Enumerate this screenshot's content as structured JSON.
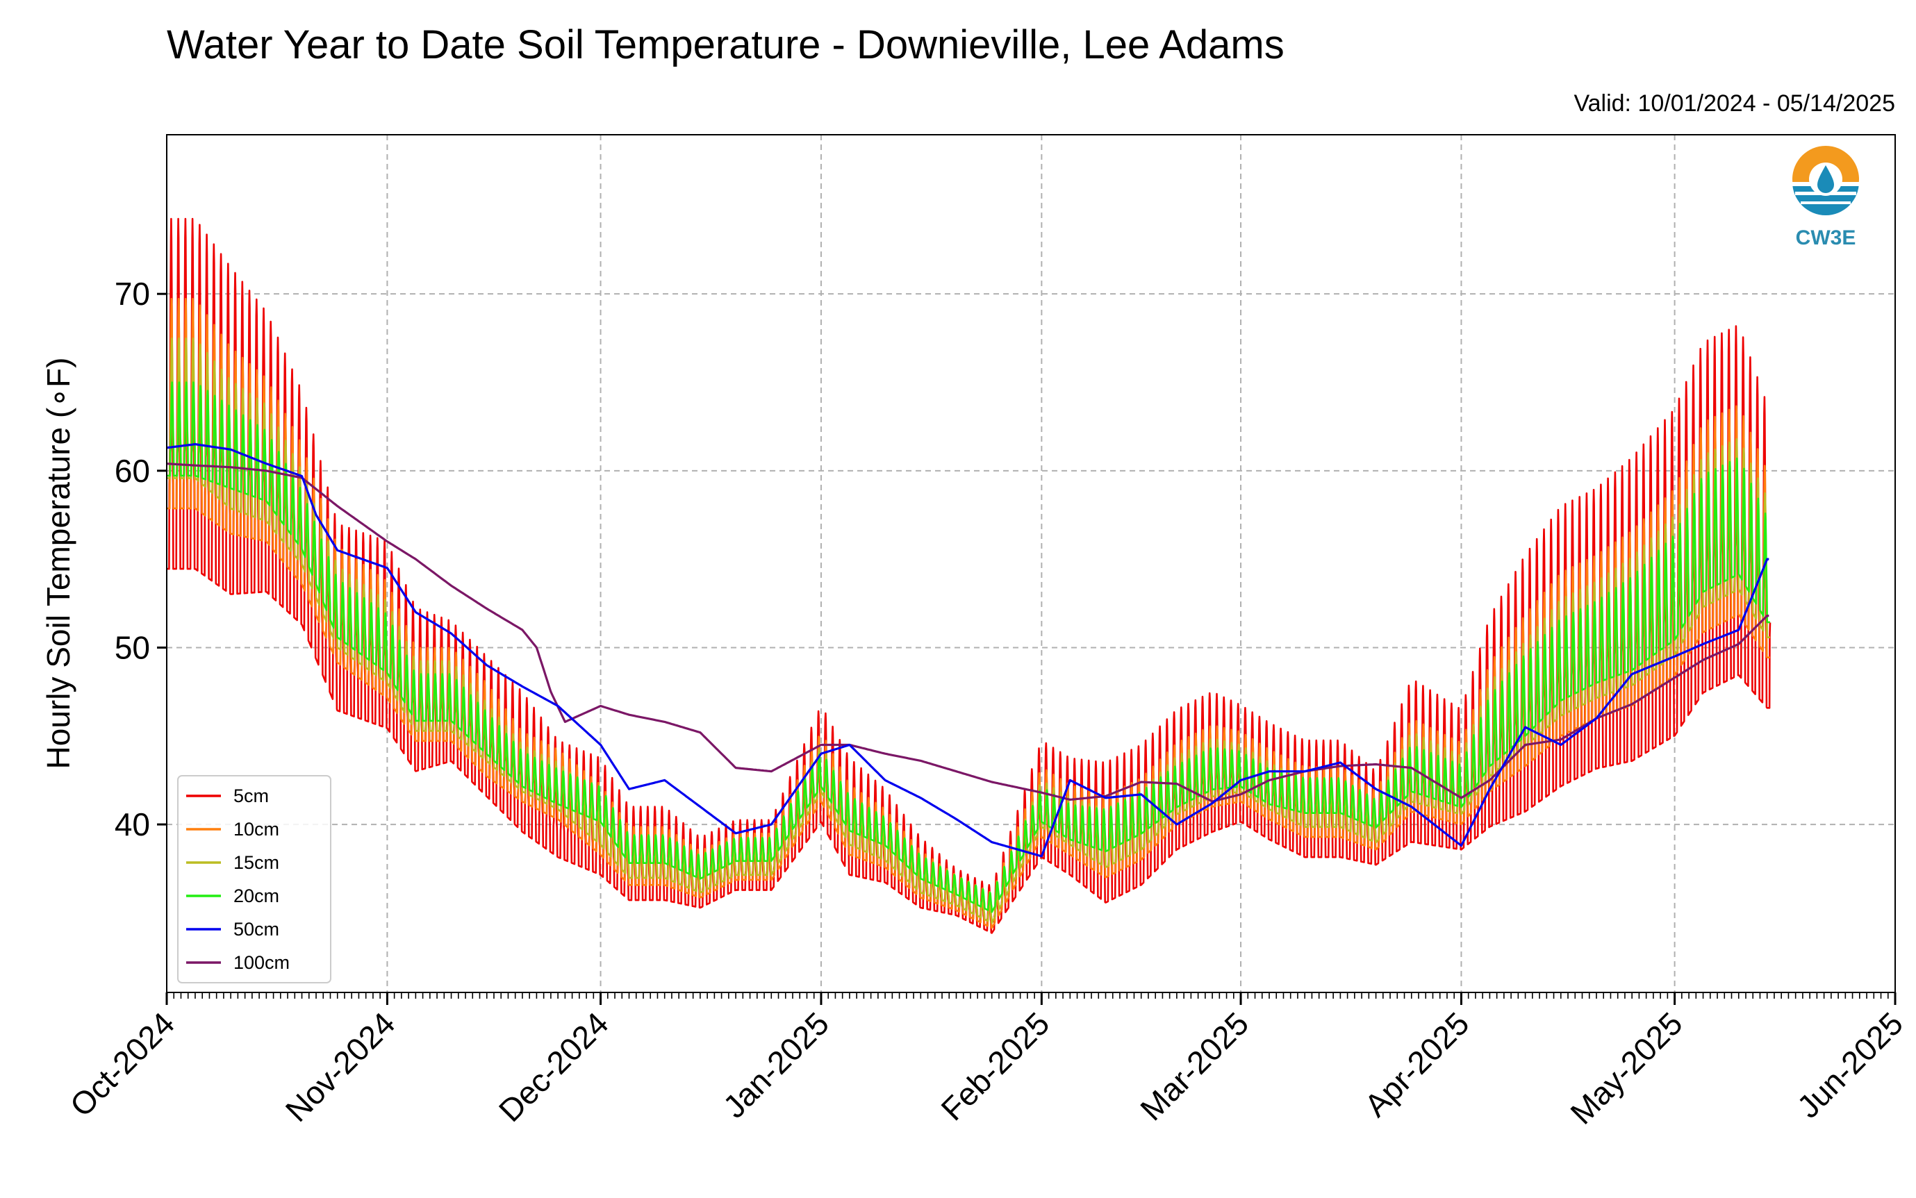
{
  "chart_data": {
    "type": "line",
    "title": "Water Year to Date Soil Temperature - Downieville, Lee Adams",
    "subtitle": "Valid: 10/01/2024 - 05/14/2025",
    "ylabel": "Hourly Soil Temperature (∘F)",
    "xlabel": "",
    "xlim": [
      "2024-10-01",
      "2025-06-01"
    ],
    "ylim": [
      30.5,
      79.0
    ],
    "x_ticks": [
      "Oct-2024",
      "Nov-2024",
      "Dec-2024",
      "Jan-2025",
      "Feb-2025",
      "Mar-2025",
      "Apr-2025",
      "May-2025",
      "Jun-2025"
    ],
    "y_ticks": [
      40,
      50,
      60,
      70
    ],
    "grid": true,
    "legend_position": "lower-left",
    "logo": "CW3E",
    "series": [
      {
        "name": "5cm",
        "color": "#ee0000",
        "dates": [
          "2024-10-01",
          "2024-10-05",
          "2024-10-10",
          "2024-10-15",
          "2024-10-20",
          "2024-10-25",
          "2024-11-01",
          "2024-11-05",
          "2024-11-10",
          "2024-11-15",
          "2024-11-20",
          "2024-11-25",
          "2024-12-01",
          "2024-12-05",
          "2024-12-10",
          "2024-12-15",
          "2024-12-20",
          "2024-12-25",
          "2025-01-01",
          "2025-01-05",
          "2025-01-10",
          "2025-01-15",
          "2025-01-20",
          "2025-01-25",
          "2025-02-01",
          "2025-02-05",
          "2025-02-10",
          "2025-02-15",
          "2025-02-20",
          "2025-02-25",
          "2025-03-01",
          "2025-03-05",
          "2025-03-10",
          "2025-03-15",
          "2025-03-20",
          "2025-03-25",
          "2025-04-01",
          "2025-04-05",
          "2025-04-10",
          "2025-04-15",
          "2025-04-20",
          "2025-04-25",
          "2025-05-01",
          "2025-05-05",
          "2025-05-10",
          "2025-05-14"
        ],
        "mean": [
          63,
          63,
          61,
          60,
          57,
          51,
          50,
          47,
          47,
          45,
          43,
          41,
          40,
          38,
          38,
          37,
          38,
          38,
          43,
          40,
          39,
          37,
          36,
          35,
          41,
          40,
          39,
          40,
          42,
          43,
          43,
          42,
          41,
          41,
          40,
          43,
          42,
          45,
          47,
          49,
          50,
          51,
          53,
          56,
          57,
          54
        ],
        "amp": [
          15,
          15,
          14,
          12,
          10,
          8,
          8,
          7,
          6,
          6,
          6,
          5,
          5,
          4,
          4,
          3,
          3,
          3,
          5,
          5,
          4,
          3,
          2,
          2,
          5,
          5,
          6,
          6,
          6,
          6,
          5,
          5,
          5,
          5,
          4,
          7,
          6,
          9,
          11,
          12,
          12,
          13,
          14,
          15,
          15,
          13
        ]
      },
      {
        "name": "10cm",
        "color": "#ff7f0e",
        "dates": [
          "2024-10-01",
          "2024-10-05",
          "2024-10-10",
          "2024-10-15",
          "2024-10-20",
          "2024-10-25",
          "2024-11-01",
          "2024-11-05",
          "2024-11-10",
          "2024-11-15",
          "2024-11-20",
          "2024-11-25",
          "2024-12-01",
          "2024-12-05",
          "2024-12-10",
          "2024-12-15",
          "2024-12-20",
          "2024-12-25",
          "2025-01-01",
          "2025-01-05",
          "2025-01-10",
          "2025-01-15",
          "2025-01-20",
          "2025-01-25",
          "2025-02-01",
          "2025-02-05",
          "2025-02-10",
          "2025-02-15",
          "2025-02-20",
          "2025-02-25",
          "2025-03-01",
          "2025-03-05",
          "2025-03-10",
          "2025-03-15",
          "2025-03-20",
          "2025-03-25",
          "2025-04-01",
          "2025-04-05",
          "2025-04-10",
          "2025-04-15",
          "2025-04-20",
          "2025-04-25",
          "2025-05-01",
          "2025-05-05",
          "2025-05-10",
          "2025-05-14"
        ],
        "mean": [
          63,
          63,
          61,
          60,
          57,
          52,
          50,
          47,
          47,
          45,
          43,
          42,
          40,
          38,
          38,
          37,
          38,
          38,
          43,
          40,
          39,
          37,
          36,
          35,
          41,
          40,
          39,
          40,
          42,
          43,
          43,
          42,
          41,
          41,
          40,
          43,
          42,
          45,
          47,
          49,
          50,
          51,
          53,
          56,
          57,
          54
        ],
        "amp": [
          9,
          9,
          8,
          7,
          6,
          5,
          5,
          4,
          4,
          4,
          3,
          3,
          3,
          2.5,
          2.5,
          2,
          2,
          2,
          3,
          3,
          2.5,
          2,
          1.5,
          1.5,
          3,
          3,
          3.5,
          3.5,
          3.5,
          3.5,
          3,
          3,
          3,
          3,
          2.5,
          4,
          3.5,
          5.5,
          6.5,
          7,
          7,
          7.5,
          8,
          9,
          9,
          8
        ]
      },
      {
        "name": "15cm",
        "color": "#bcbd22",
        "dates": [
          "2024-10-01",
          "2024-10-05",
          "2024-10-10",
          "2024-10-15",
          "2024-10-20",
          "2024-10-25",
          "2024-11-01",
          "2024-11-05",
          "2024-11-10",
          "2024-11-15",
          "2024-11-20",
          "2024-11-25",
          "2024-12-01",
          "2024-12-05",
          "2024-12-10",
          "2024-12-15",
          "2024-12-20",
          "2024-12-25",
          "2025-01-01",
          "2025-01-05",
          "2025-01-10",
          "2025-01-15",
          "2025-01-20",
          "2025-01-25",
          "2025-02-01",
          "2025-02-05",
          "2025-02-10",
          "2025-02-15",
          "2025-02-20",
          "2025-02-25",
          "2025-03-01",
          "2025-03-05",
          "2025-03-10",
          "2025-03-15",
          "2025-03-20",
          "2025-03-25",
          "2025-04-01",
          "2025-04-05",
          "2025-04-10",
          "2025-04-15",
          "2025-04-20",
          "2025-04-25",
          "2025-05-01",
          "2025-05-05",
          "2025-05-10",
          "2025-05-14"
        ],
        "mean": [
          63,
          63,
          61,
          60,
          57,
          52,
          50,
          47,
          47,
          45,
          43,
          42,
          40,
          38,
          38,
          37,
          38,
          38,
          43,
          40,
          39,
          37,
          36,
          35,
          41,
          40,
          39,
          40,
          42,
          43,
          43,
          42,
          41,
          41,
          40,
          43,
          42,
          45,
          47,
          49,
          50,
          51,
          53,
          56,
          57,
          54
        ],
        "amp": [
          6,
          6,
          5.5,
          5,
          4,
          3.5,
          3.5,
          3,
          3,
          2.5,
          2,
          2,
          2,
          1.8,
          1.8,
          1.5,
          1.5,
          1.5,
          2,
          2,
          1.8,
          1.5,
          1,
          1,
          2,
          2,
          2.5,
          2.5,
          2.5,
          2.5,
          2,
          2,
          2,
          2,
          1.8,
          3,
          2.5,
          4,
          4.5,
          5,
          5,
          5.5,
          6,
          6.5,
          6.5,
          6
        ]
      },
      {
        "name": "20cm",
        "color": "#22ee11",
        "dates": [
          "2024-10-01",
          "2024-10-05",
          "2024-10-10",
          "2024-10-15",
          "2024-10-20",
          "2024-10-25",
          "2024-11-01",
          "2024-11-05",
          "2024-11-10",
          "2024-11-15",
          "2024-11-20",
          "2024-11-25",
          "2024-12-01",
          "2024-12-05",
          "2024-12-10",
          "2024-12-15",
          "2024-12-20",
          "2024-12-25",
          "2025-01-01",
          "2025-01-05",
          "2025-01-10",
          "2025-01-15",
          "2025-01-20",
          "2025-01-25",
          "2025-02-01",
          "2025-02-05",
          "2025-02-10",
          "2025-02-15",
          "2025-02-20",
          "2025-02-25",
          "2025-03-01",
          "2025-03-05",
          "2025-03-10",
          "2025-03-15",
          "2025-03-20",
          "2025-03-25",
          "2025-04-01",
          "2025-04-05",
          "2025-04-10",
          "2025-04-15",
          "2025-04-20",
          "2025-04-25",
          "2025-05-01",
          "2025-05-05",
          "2025-05-10",
          "2025-05-14"
        ],
        "mean": [
          62,
          62,
          61,
          60,
          57,
          52,
          50,
          47,
          47,
          45,
          43,
          42,
          41,
          38.5,
          38.5,
          37.5,
          38.5,
          38.5,
          43,
          40.5,
          39.5,
          37.5,
          36.5,
          35.5,
          41,
          40,
          39.5,
          40.5,
          42,
          43,
          43,
          42,
          41.5,
          41.5,
          40.5,
          43,
          42,
          45,
          47,
          49,
          50,
          51,
          53,
          56,
          57,
          54
        ],
        "amp": [
          4,
          4,
          3.5,
          3,
          2.5,
          2.5,
          2.5,
          2,
          2,
          1.8,
          1.5,
          1.5,
          1.5,
          1.2,
          1.2,
          1,
          1,
          1,
          1.5,
          1.5,
          1.2,
          1,
          0.8,
          0.8,
          1.5,
          1.5,
          1.8,
          1.8,
          1.8,
          1.8,
          1.5,
          1.5,
          1.5,
          1.5,
          1.2,
          2,
          1.8,
          3,
          3.5,
          3.5,
          3.5,
          4,
          4.5,
          5,
          5,
          4.5
        ]
      },
      {
        "name": "50cm",
        "color": "#0000ee",
        "dates": [
          "2024-10-01",
          "2024-10-05",
          "2024-10-10",
          "2024-10-15",
          "2024-10-20",
          "2024-10-22",
          "2024-10-25",
          "2024-11-01",
          "2024-11-05",
          "2024-11-10",
          "2024-11-15",
          "2024-11-20",
          "2024-11-25",
          "2024-12-01",
          "2024-12-05",
          "2024-12-10",
          "2024-12-15",
          "2024-12-20",
          "2024-12-25",
          "2025-01-01",
          "2025-01-05",
          "2025-01-10",
          "2025-01-15",
          "2025-01-20",
          "2025-01-25",
          "2025-02-01",
          "2025-02-05",
          "2025-02-10",
          "2025-02-15",
          "2025-02-20",
          "2025-02-25",
          "2025-03-01",
          "2025-03-05",
          "2025-03-10",
          "2025-03-15",
          "2025-03-20",
          "2025-03-25",
          "2025-04-01",
          "2025-04-05",
          "2025-04-10",
          "2025-04-15",
          "2025-04-20",
          "2025-04-25",
          "2025-05-01",
          "2025-05-05",
          "2025-05-10",
          "2025-05-14"
        ],
        "values": [
          61.3,
          61.5,
          61.2,
          60.4,
          59.7,
          57.5,
          55.5,
          54.5,
          52,
          50.8,
          49,
          47.8,
          46.7,
          44.5,
          42,
          42.5,
          41,
          39.5,
          40,
          44,
          44.5,
          42.5,
          41.5,
          40.3,
          39,
          38.2,
          42.5,
          41.5,
          41.7,
          40,
          41.2,
          42.5,
          43,
          43,
          43.5,
          42,
          41,
          38.8,
          42,
          45.5,
          44.5,
          46,
          48.5,
          49.5,
          50.2,
          51,
          55
        ]
      },
      {
        "name": "100cm",
        "color": "#7b1766",
        "dates": [
          "2024-10-01",
          "2024-10-05",
          "2024-10-10",
          "2024-10-15",
          "2024-10-20",
          "2024-10-25",
          "2024-11-01",
          "2024-11-05",
          "2024-11-10",
          "2024-11-15",
          "2024-11-20",
          "2024-11-22",
          "2024-11-24",
          "2024-11-26",
          "2024-12-01",
          "2024-12-05",
          "2024-12-10",
          "2024-12-15",
          "2024-12-20",
          "2024-12-25",
          "2025-01-01",
          "2025-01-05",
          "2025-01-10",
          "2025-01-15",
          "2025-01-20",
          "2025-01-25",
          "2025-02-01",
          "2025-02-05",
          "2025-02-10",
          "2025-02-15",
          "2025-02-20",
          "2025-02-25",
          "2025-03-01",
          "2025-03-05",
          "2025-03-10",
          "2025-03-15",
          "2025-03-20",
          "2025-03-25",
          "2025-04-01",
          "2025-04-05",
          "2025-04-10",
          "2025-04-15",
          "2025-04-20",
          "2025-04-25",
          "2025-05-01",
          "2025-05-05",
          "2025-05-10",
          "2025-05-14"
        ],
        "values": [
          60.4,
          60.3,
          60.2,
          60,
          59.6,
          58,
          56,
          55,
          53.5,
          52.2,
          51,
          50,
          47.5,
          45.8,
          46.7,
          46.2,
          45.8,
          45.2,
          43.2,
          43,
          44.5,
          44.5,
          44,
          43.6,
          43,
          42.4,
          41.8,
          41.4,
          41.6,
          42.4,
          42.3,
          41.3,
          41.7,
          42.5,
          43,
          43.3,
          43.4,
          43.2,
          41.5,
          42.5,
          44.5,
          44.8,
          46,
          46.8,
          48.3,
          49.3,
          50.2,
          51.8
        ]
      }
    ]
  }
}
